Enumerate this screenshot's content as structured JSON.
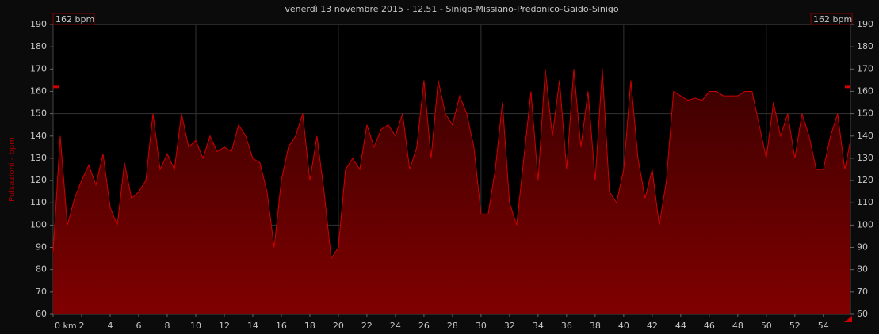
{
  "chart_data": {
    "type": "area",
    "title": "venerdì 13 novembre 2015 - 12.51 - Sinigo-Missiano-Predonico-Gaido-Sinigo",
    "y_label": "Pulsazioni - bpm",
    "annotation": {
      "text": "162 bpm",
      "value": 162
    },
    "x": [
      0,
      0.5,
      1,
      1.5,
      2,
      2.5,
      3,
      3.5,
      4,
      4.5,
      5,
      5.5,
      6,
      6.5,
      7,
      7.5,
      8,
      8.5,
      9,
      9.5,
      10,
      10.5,
      11,
      11.5,
      12,
      12.5,
      13,
      13.5,
      14,
      14.5,
      15,
      15.5,
      16,
      16.5,
      17,
      17.5,
      18,
      18.5,
      19,
      19.5,
      20,
      20.5,
      21,
      21.5,
      22,
      22.5,
      23,
      23.5,
      24,
      24.5,
      25,
      25.5,
      26,
      26.5,
      27,
      27.5,
      28,
      28.5,
      29,
      29.5,
      30,
      30.5,
      31,
      31.5,
      32,
      32.5,
      33,
      33.5,
      34,
      34.5,
      35,
      35.5,
      36,
      36.5,
      37,
      37.5,
      38,
      38.5,
      39,
      39.5,
      40,
      40.5,
      41,
      41.5,
      42,
      42.5,
      43,
      43.5,
      44,
      44.5,
      45,
      45.5,
      46,
      46.5,
      47,
      47.5,
      48,
      48.5,
      49,
      49.5,
      50,
      50.5,
      51,
      51.5,
      52,
      52.5,
      53,
      53.5,
      54,
      54.5,
      55,
      55.5,
      55.9
    ],
    "series": [
      {
        "name": "Pulsazioni",
        "color": "#d00000",
        "values": [
          88,
          140,
          100,
          112,
          120,
          127,
          118,
          132,
          108,
          100,
          128,
          112,
          115,
          120,
          150,
          125,
          132,
          125,
          150,
          135,
          138,
          130,
          140,
          133,
          135,
          133,
          145,
          140,
          130,
          128,
          115,
          90,
          120,
          135,
          140,
          150,
          120,
          140,
          115,
          85,
          90,
          125,
          130,
          125,
          145,
          135,
          143,
          145,
          140,
          150,
          125,
          135,
          165,
          130,
          165,
          150,
          145,
          158,
          150,
          135,
          105,
          105,
          125,
          155,
          110,
          100,
          130,
          160,
          120,
          170,
          140,
          165,
          125,
          170,
          135,
          160,
          120,
          170,
          115,
          110,
          125,
          165,
          130,
          112,
          125,
          100,
          120,
          160,
          158,
          156,
          157,
          156,
          160,
          160,
          158,
          158,
          158,
          160,
          160,
          145,
          130,
          155,
          140,
          150,
          130,
          150,
          140,
          125,
          125,
          140,
          150,
          125,
          138
        ]
      }
    ],
    "xlim": [
      0,
      55.9
    ],
    "ylim": [
      60,
      190
    ],
    "xticks": [
      {
        "value": 0,
        "label": "0 km"
      },
      2,
      4,
      6,
      8,
      10,
      12,
      14,
      16,
      18,
      20,
      22,
      24,
      26,
      28,
      30,
      32,
      34,
      36,
      38,
      40,
      42,
      44,
      46,
      48,
      50,
      52,
      54
    ],
    "yticks": [
      60,
      70,
      80,
      90,
      100,
      110,
      120,
      130,
      140,
      150,
      160,
      170,
      180,
      190
    ],
    "xgrid": [
      10,
      20,
      30,
      40,
      50
    ],
    "ygrid": [
      100,
      150
    ],
    "fill_top": "#3a0000",
    "fill_bottom": "#800000",
    "grid": true
  }
}
